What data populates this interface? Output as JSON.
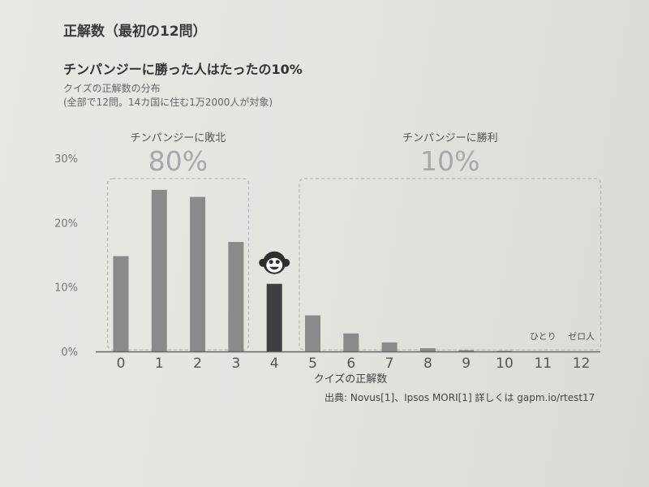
{
  "header": {
    "section_title": "正解数（最初の12問）",
    "chart_title": "チンパンジーに勝った人はたったの10%",
    "subtitle_line1": "クイズの正解数の分布",
    "subtitle_line2": "(全部で12問。14カ国に住む1万2000人が対象)"
  },
  "source": "出典: Novus[1]、Ipsos MORI[1] 詳しくは gapm.io/rtest17",
  "colors": {
    "bar": "#8a8a8a",
    "bar_highlight": "#3f3f3f",
    "dash_box": "#b9b9b9",
    "axis": "#666666"
  },
  "icons": {
    "marker": "monkey-face-icon"
  },
  "chart_data": {
    "type": "bar",
    "title": "チンパンジーに勝った人はたったの10%",
    "subtitle": "クイズの正解数の分布",
    "xlabel": "クイズの正解数",
    "ylabel": "",
    "categories": [
      "0",
      "1",
      "2",
      "3",
      "4",
      "5",
      "6",
      "7",
      "8",
      "9",
      "10",
      "11",
      "12"
    ],
    "values": [
      14.8,
      25.1,
      24.0,
      17.0,
      10.5,
      5.6,
      2.8,
      1.4,
      0.5,
      0.2,
      0.1,
      0,
      0
    ],
    "highlight_index": 4,
    "ylim": [
      0,
      30
    ],
    "yticks": [
      "0%",
      "10%",
      "20%",
      "30%"
    ],
    "yticks_values": [
      0,
      10,
      20,
      30
    ],
    "grid": false,
    "groups": [
      {
        "label": "チンパンジーに敗北",
        "value": "80%",
        "from": 0,
        "to": 3
      },
      {
        "label": "チンパンジーに勝利",
        "value": "10%",
        "from": 5,
        "to": 12
      }
    ],
    "annotations": [
      {
        "category": "11",
        "text": "ひとり"
      },
      {
        "category": "12",
        "text": "ゼロ人"
      }
    ]
  }
}
